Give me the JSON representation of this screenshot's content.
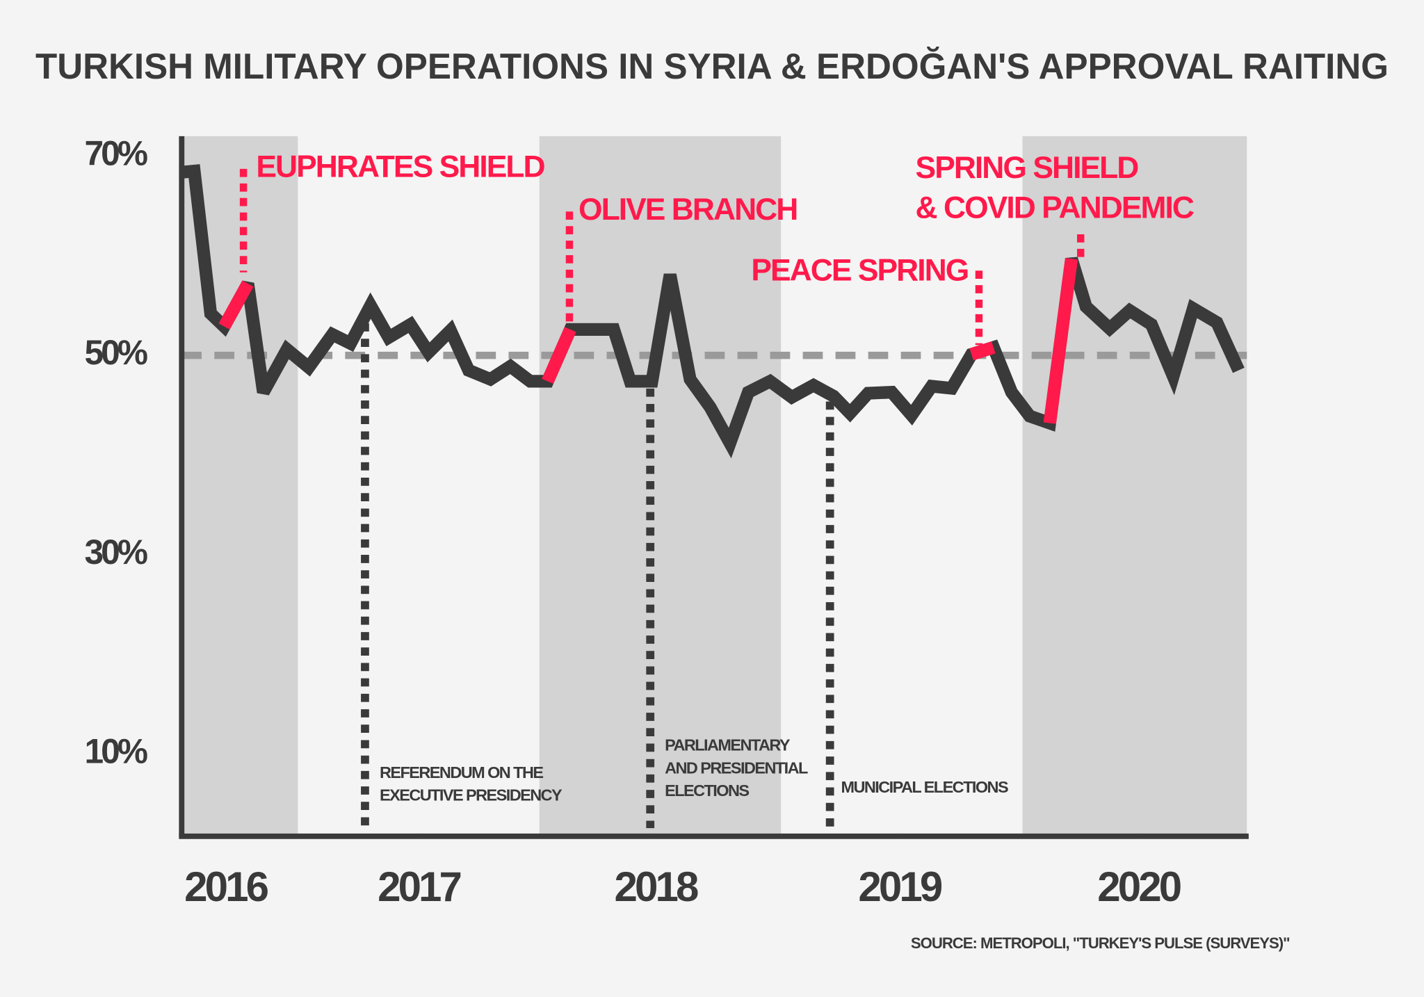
{
  "chart_data": {
    "type": "line",
    "title": "TURKISH MILITARY OPERATIONS IN SYRIA & ERDOĞAN'S APPROVAL RAITING",
    "source": "SOURCE: METROPOLI, \"TURKEY'S PULSE (SURVEYS)\"",
    "x": [
      2016.526,
      2016.571,
      2016.639,
      2016.695,
      2016.793,
      2016.857,
      2016.955,
      2017.045,
      2017.143,
      2017.218,
      2017.301,
      2017.376,
      2017.466,
      2017.541,
      2017.632,
      2017.707,
      2017.797,
      2017.88,
      2017.962,
      2018.034,
      2018.128,
      2018.218,
      2018.308,
      2018.376,
      2018.466,
      2018.541,
      2018.624,
      2018.707,
      2018.789,
      2018.865,
      2018.955,
      2019.045,
      2019.135,
      2019.218,
      2019.286,
      2019.361,
      2019.459,
      2019.541,
      2019.624,
      2019.707,
      2019.789,
      2019.88,
      2019.955,
      2020.03,
      2020.113,
      2020.203,
      2020.263,
      2020.361,
      2020.444,
      2020.534,
      2020.624,
      2020.707,
      2020.805,
      2020.895
    ],
    "series": [
      {
        "color": "#3a3a3a",
        "values": [
          68.4,
          68.5,
          54.2,
          52.9,
          57.2,
          46.3,
          50.6,
          48.8,
          52.1,
          51.2,
          55.0,
          51.8,
          53.1,
          50.3,
          52.5,
          48.5,
          47.6,
          48.9,
          47.4,
          47.4,
          52.6,
          52.6,
          52.6,
          47.4,
          47.4,
          58.1,
          47.6,
          44.8,
          41.2,
          46.3,
          47.4,
          45.8,
          47.0,
          45.9,
          44.2,
          46.2,
          46.3,
          44.0,
          46.9,
          46.7,
          50.1,
          50.8,
          46.3,
          43.9,
          43.2,
          59.7,
          54.9,
          52.7,
          54.5,
          53.1,
          47.9,
          54.7,
          53.3,
          48.5
        ]
      },
      {
        "color": "#ff1a4b",
        "values": [
          null,
          null,
          null,
          52.9,
          57.2,
          null,
          null,
          null,
          null,
          null,
          null,
          null,
          null,
          null,
          null,
          null,
          null,
          null,
          null,
          47.4,
          52.6,
          null,
          null,
          null,
          null,
          null,
          null,
          null,
          null,
          null,
          null,
          null,
          null,
          null,
          null,
          null,
          null,
          null,
          null,
          null,
          50.1,
          50.8,
          null,
          null,
          43.2,
          59.7,
          null,
          null,
          null,
          null,
          null,
          null,
          null,
          null
        ]
      }
    ],
    "xlim": [
      2016.519,
      2020.929
    ],
    "xticks": [
      {
        "value": 2016.7,
        "label": "2016"
      },
      {
        "value": 2017.5,
        "label": "2017"
      },
      {
        "value": 2018.48,
        "label": "2018"
      },
      {
        "value": 2019.49,
        "label": "2019"
      },
      {
        "value": 2020.48,
        "label": "2020"
      }
    ],
    "ylim": [
      2,
      72
    ],
    "yticks": [
      {
        "value": 10,
        "label": "10%"
      },
      {
        "value": 30,
        "label": "30%"
      },
      {
        "value": 50,
        "label": "50%"
      },
      {
        "value": 70,
        "label": "70%"
      }
    ],
    "reference_line": 50,
    "shaded_years": [
      2016,
      2018,
      2020
    ],
    "operations": [
      {
        "text": [
          "EUPHRATES SHIELD"
        ]
      },
      {
        "text": [
          "OLIVE BRANCH"
        ]
      },
      {
        "text": [
          "PEACE SPRING"
        ]
      },
      {
        "text": [
          "SPRING SHIELD",
          "& COVID PANDEMIC"
        ]
      }
    ],
    "events": [
      {
        "x": 2017.278,
        "text": [
          "REFERENDUM ON THE",
          "EXECUTIVE PRESIDENCY"
        ]
      },
      {
        "x": 2018.459,
        "text": [
          "PARLIAMENTARY",
          "AND PRESIDENTIAL",
          "ELECTIONS"
        ]
      },
      {
        "x": 2019.203,
        "text": [
          "MUNICIPAL ELECTIONS"
        ]
      }
    ]
  }
}
